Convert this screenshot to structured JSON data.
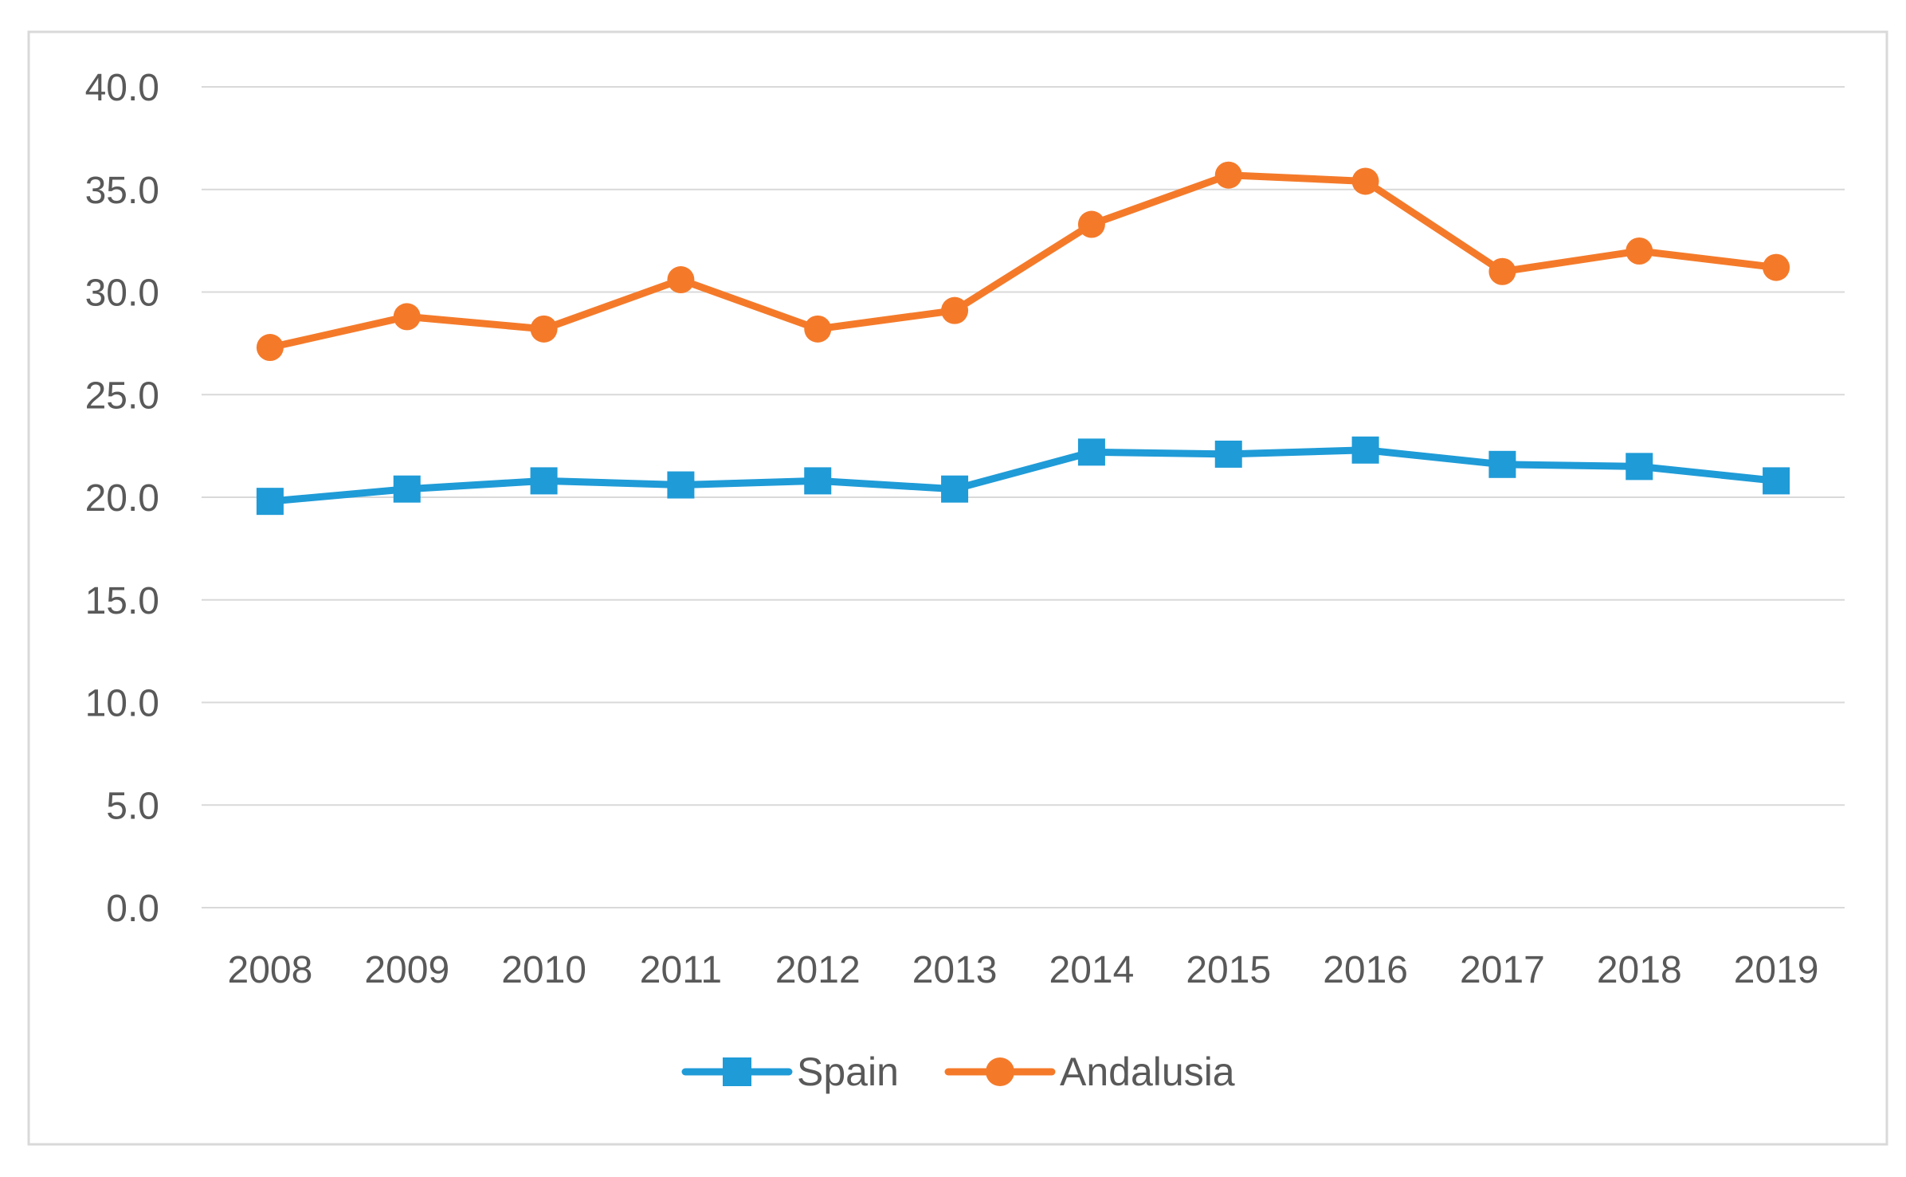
{
  "chart_data": {
    "type": "line",
    "title": "",
    "xlabel": "",
    "ylabel": "",
    "categories": [
      "2008",
      "2009",
      "2010",
      "2011",
      "2012",
      "2013",
      "2014",
      "2015",
      "2016",
      "2017",
      "2018",
      "2019"
    ],
    "series": [
      {
        "name": "Spain",
        "color": "#1f9bd7",
        "marker": "square",
        "values": [
          19.8,
          20.4,
          20.8,
          20.6,
          20.8,
          20.4,
          22.2,
          22.1,
          22.3,
          21.6,
          21.5,
          20.8
        ]
      },
      {
        "name": "Andalusia",
        "color": "#f47a2a",
        "marker": "circle",
        "values": [
          27.3,
          28.8,
          28.2,
          30.6,
          28.2,
          29.1,
          33.3,
          35.7,
          35.4,
          31.0,
          32.0,
          31.2
        ]
      }
    ],
    "ylim": [
      0,
      40
    ],
    "yticks": [
      "0.0",
      "5.0",
      "10.0",
      "15.0",
      "20.0",
      "25.0",
      "30.0",
      "35.0",
      "40.0"
    ],
    "grid": true,
    "legend": "bottom-center"
  }
}
